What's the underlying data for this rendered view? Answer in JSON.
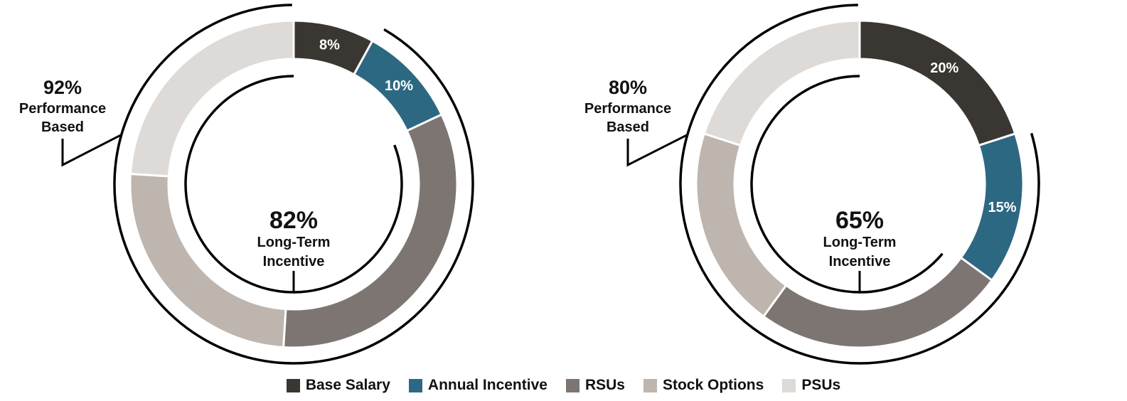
{
  "colors": {
    "Base Salary": "#3a3632",
    "Annual Incentive": "#2d6882",
    "RSUs": "#7c7572",
    "Stock Options": "#bdb5ae",
    "PSUs": "#dedad7"
  },
  "legend": [
    "Base Salary",
    "Annual Incentive",
    "RSUs",
    "Stock Options",
    "PSUs"
  ],
  "chart_data": [
    {
      "type": "pie",
      "categories": [
        "Base Salary",
        "Annual Incentive",
        "RSUs",
        "Stock Options",
        "PSUs"
      ],
      "values": [
        8,
        10,
        33,
        25,
        24
      ],
      "slice_labels": [
        "8%",
        "10%",
        "",
        "",
        ""
      ],
      "performance_based": {
        "pct": "92%",
        "line1": "Performance",
        "line2": "Based"
      },
      "long_term_incentive": {
        "pct": "82%",
        "line1": "Long-Term",
        "line2": "Incentive"
      }
    },
    {
      "type": "pie",
      "categories": [
        "Base Salary",
        "Annual Incentive",
        "RSUs",
        "Stock Options",
        "PSUs"
      ],
      "values": [
        20,
        15,
        25,
        20,
        20
      ],
      "slice_labels": [
        "20%",
        "15%",
        "",
        "",
        ""
      ],
      "performance_based": {
        "pct": "80%",
        "line1": "Performance",
        "line2": "Based"
      },
      "long_term_incentive": {
        "pct": "65%",
        "line1": "Long-Term",
        "line2": "Incentive"
      }
    }
  ]
}
